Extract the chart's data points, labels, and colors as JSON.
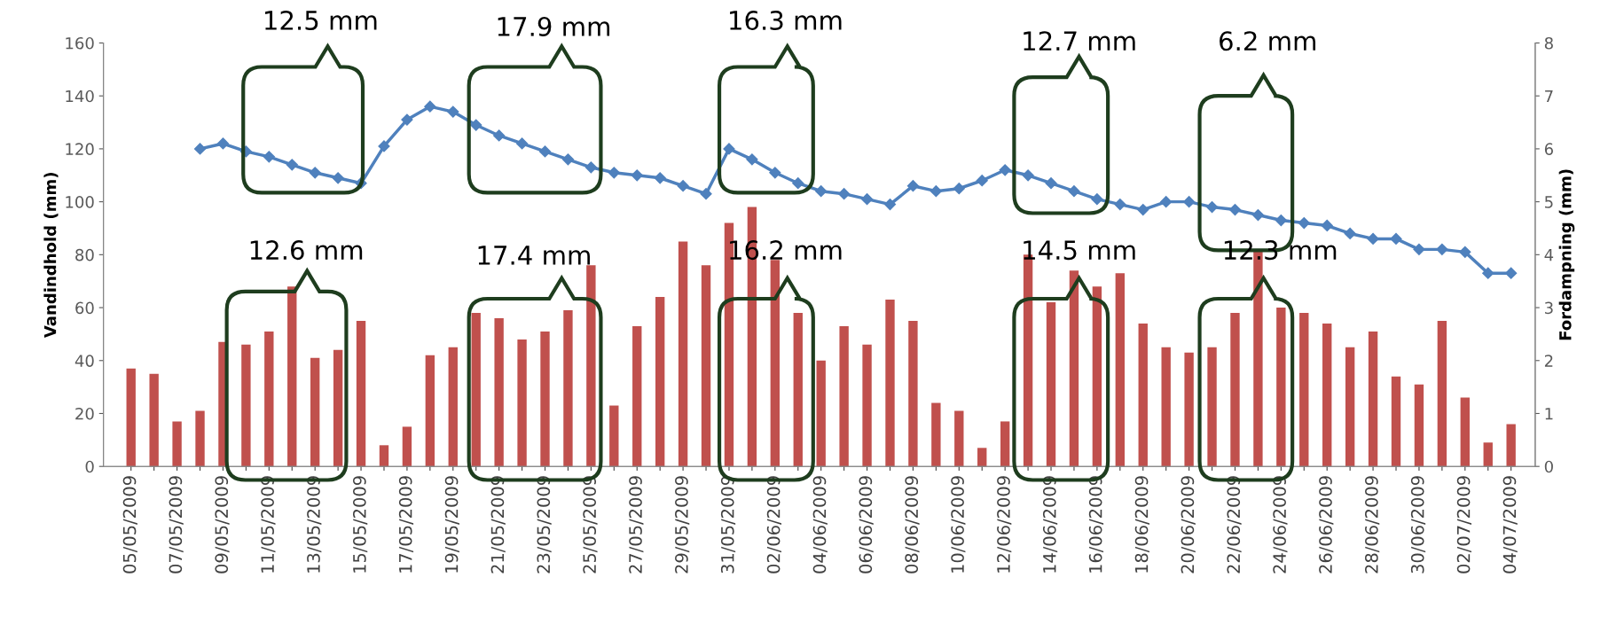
{
  "chart_data": {
    "type": "bar",
    "ylabel": "Vandindhold (mm)",
    "y2label": "Fordampning (mm)",
    "categories": [
      "05/05/2009",
      null,
      "07/05/2009",
      null,
      "09/05/2009",
      null,
      "11/05/2009",
      null,
      "13/05/2009",
      null,
      "15/05/2009",
      null,
      "17/05/2009",
      null,
      "19/05/2009",
      null,
      "21/05/2009",
      null,
      "23/05/2009",
      null,
      "25/05/2009",
      null,
      "27/05/2009",
      null,
      "29/05/2009",
      null,
      "31/05/2009",
      null,
      "02/06/2009",
      null,
      "04/06/2009",
      null,
      "06/06/2009",
      null,
      "08/06/2009",
      null,
      "10/06/2009",
      null,
      "12/06/2009",
      null,
      "14/06/2009",
      null,
      "16/06/2009",
      null,
      "18/06/2009",
      null,
      "20/06/2009",
      null,
      "22/06/2009",
      null,
      "24/06/2009",
      null,
      "26/06/2009",
      null,
      "28/06/2009",
      null,
      "30/06/2009",
      null,
      "02/07/2009",
      null,
      "04/07/2009"
    ],
    "series": [
      {
        "axis": "y2",
        "color": "#c0504d",
        "values": [
          1.85,
          1.75,
          0.85,
          1.05,
          2.35,
          2.3,
          2.55,
          3.4,
          2.05,
          2.2,
          2.75,
          0.4,
          0.75,
          2.1,
          2.25,
          2.9,
          2.8,
          2.4,
          2.55,
          2.95,
          3.8,
          1.15,
          2.65,
          3.2,
          4.25,
          3.8,
          4.6,
          4.9,
          3.9,
          2.9,
          2.0,
          2.65,
          2.3,
          3.15,
          2.75,
          1.2,
          1.05,
          0.35,
          0.85,
          4.0,
          3.1,
          3.7,
          3.4,
          3.65,
          2.7,
          2.25,
          2.15,
          2.25,
          2.9,
          4.1,
          3.0,
          2.9,
          2.7,
          2.25,
          2.55,
          1.7,
          1.55,
          2.75,
          1.3,
          0.45,
          0.8
        ]
      },
      {
        "type": "line",
        "color": "#4f81bd",
        "values": [
          null,
          null,
          null,
          120,
          122,
          119,
          117,
          114,
          111,
          109,
          107,
          121,
          131,
          136,
          134,
          129,
          125,
          122,
          119,
          116,
          113,
          111,
          110,
          109,
          106,
          103,
          120,
          116,
          111,
          107,
          104,
          103,
          101,
          99,
          106,
          104,
          105,
          108,
          112,
          110,
          107,
          104,
          101,
          99,
          97,
          100,
          100,
          98,
          97,
          95,
          93,
          92,
          91,
          88,
          86,
          86,
          82,
          82,
          81,
          73,
          73
        ]
      }
    ],
    "marker": "diamond",
    "ylim": [
      0,
      160
    ],
    "yticks": [
      0,
      20,
      40,
      60,
      80,
      100,
      120,
      140,
      160
    ],
    "y2lim": [
      0,
      8
    ],
    "y2ticks": [
      0,
      1,
      2,
      3,
      4,
      5,
      6,
      7,
      8
    ],
    "annotations": [
      "12.5 mm",
      "17.9 mm",
      "16.3 mm",
      "12.7 mm",
      "6.2 mm",
      "12.6 mm",
      "17.4 mm",
      "16.2 mm",
      "14.5 mm",
      "12.3 mm"
    ]
  }
}
